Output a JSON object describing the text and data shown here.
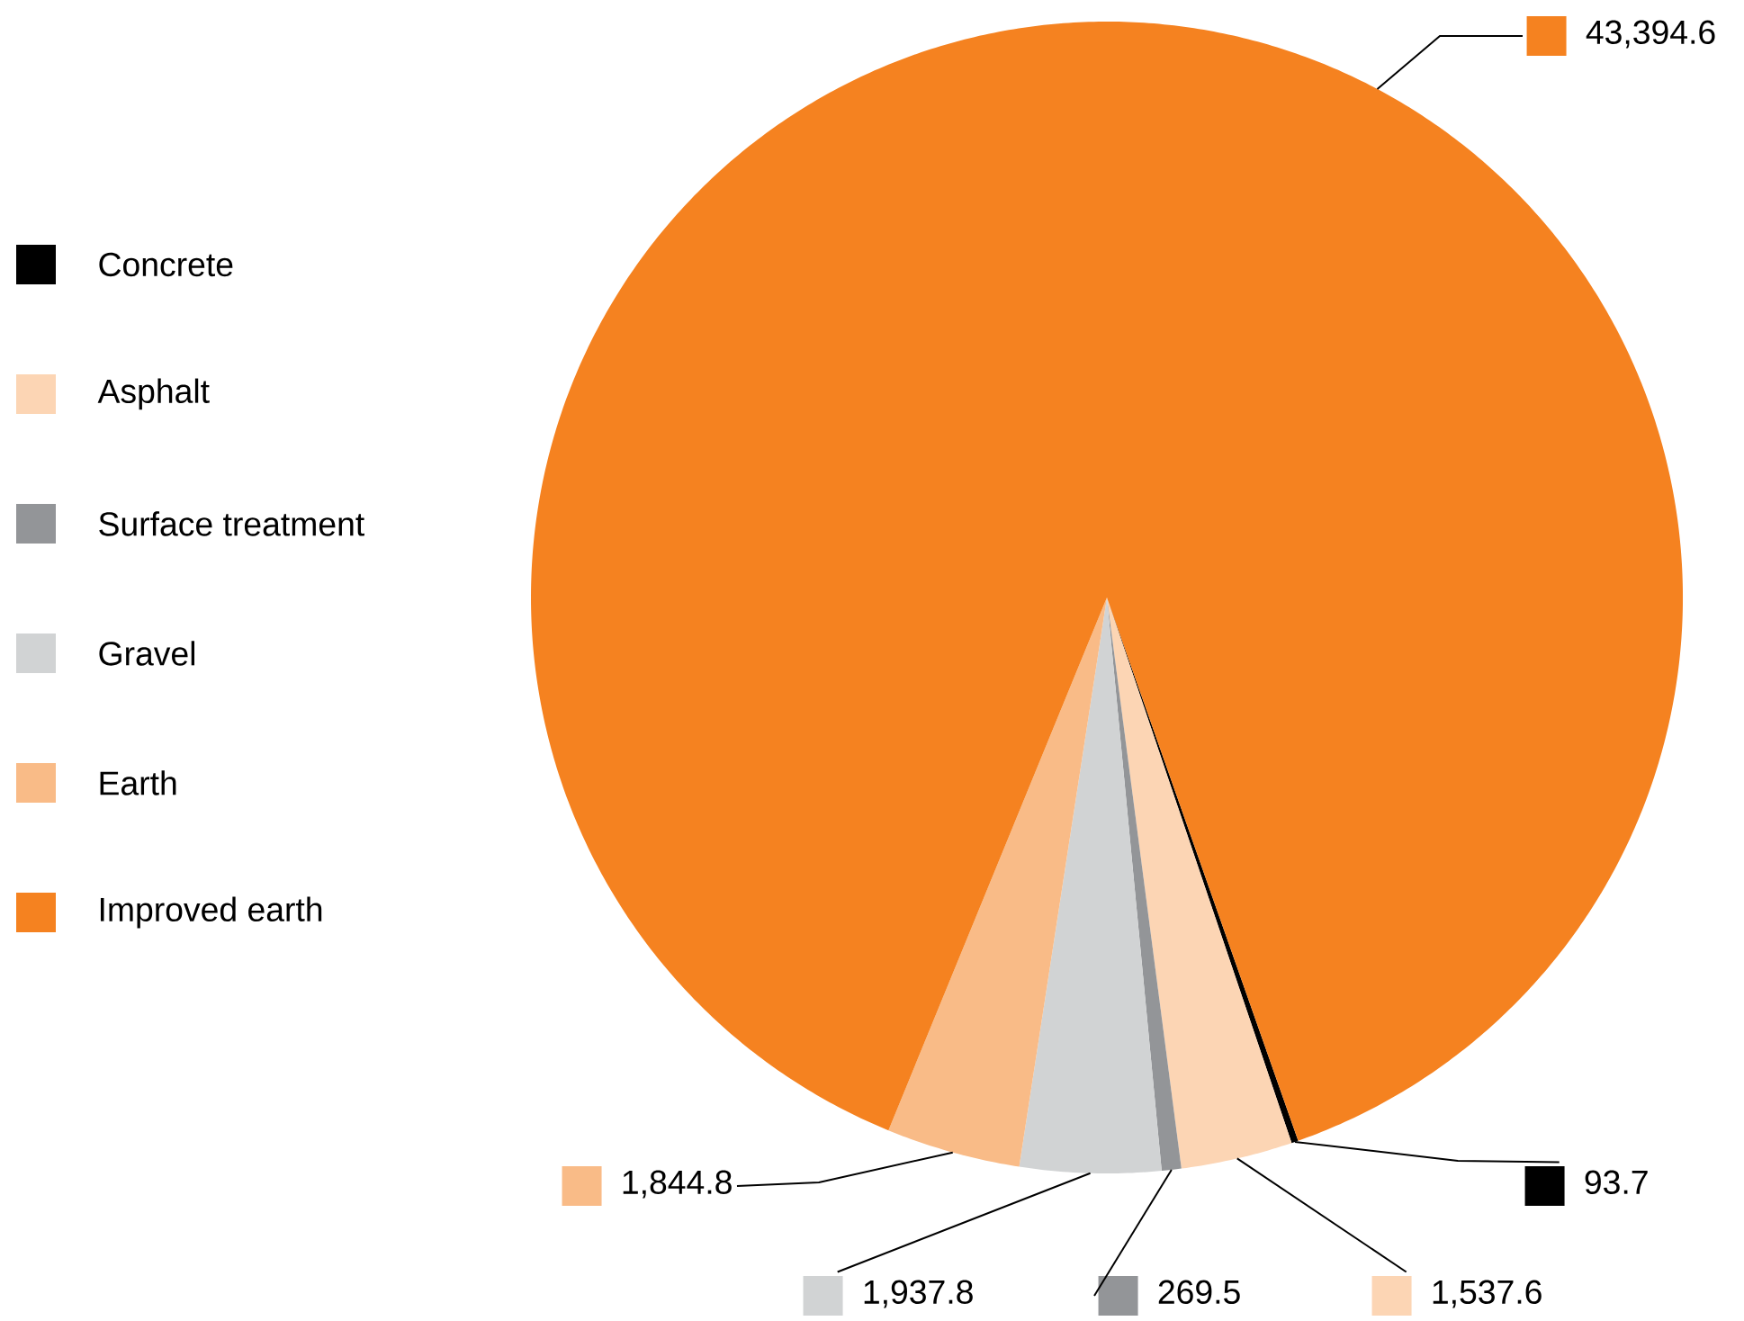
{
  "chart_data": {
    "type": "pie",
    "categories": [
      "Concrete",
      "Asphalt",
      "Surface treatment",
      "Gravel",
      "Earth",
      "Improved earth"
    ],
    "values": [
      93.7,
      1537.6,
      269.5,
      1937.8,
      1844.8,
      43394.6
    ],
    "colors": [
      "#000000",
      "#fcd5b4",
      "#939598",
      "#d1d3d4",
      "#f9bb87",
      "#f58220"
    ],
    "value_labels": [
      "93.7",
      "1,537.6",
      "269.5",
      "1,937.8",
      "1,844.8",
      "43,394.6"
    ],
    "legend": "left"
  }
}
